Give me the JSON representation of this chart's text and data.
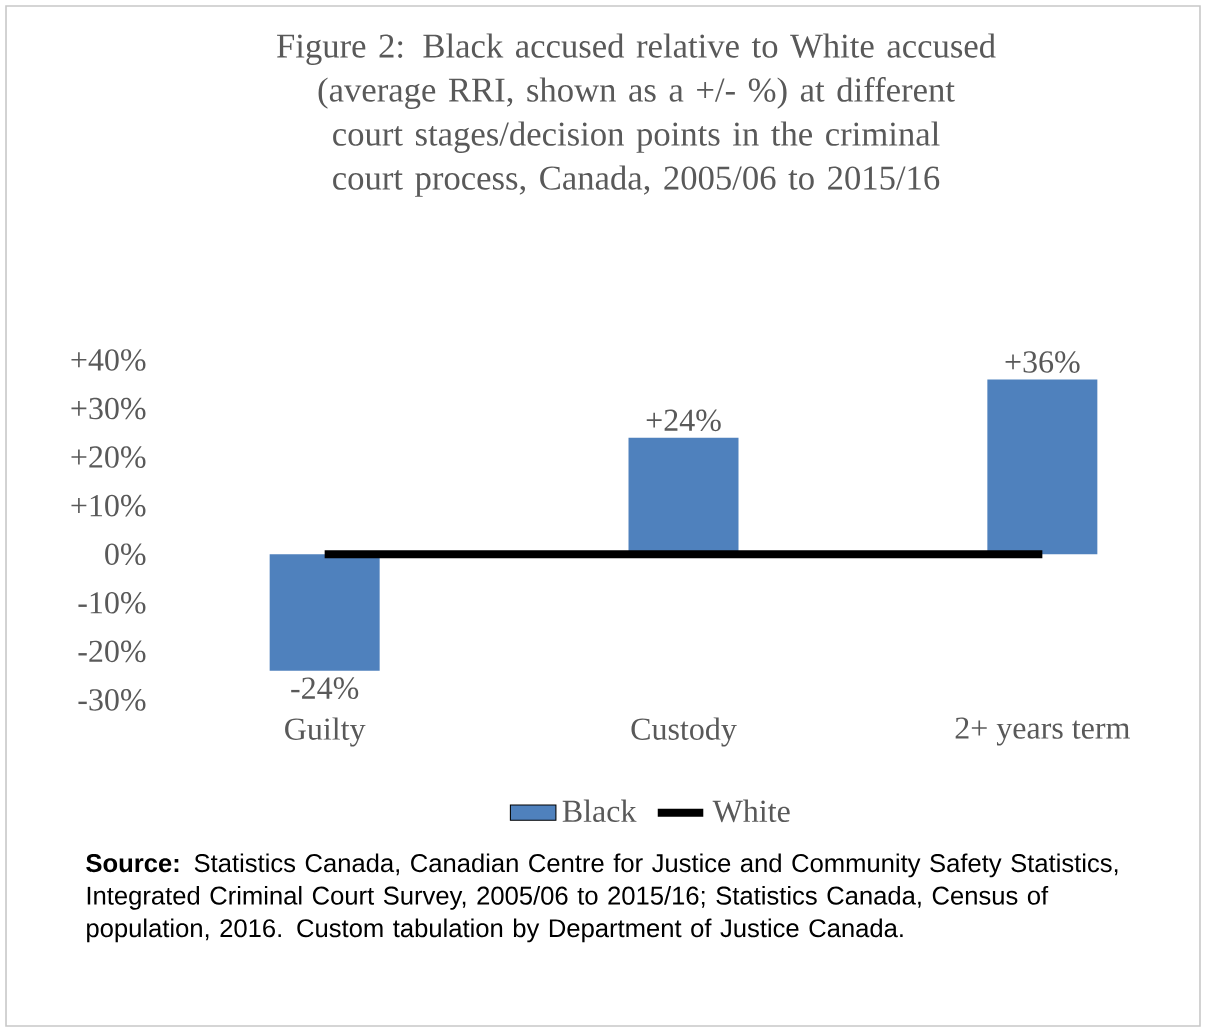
{
  "chart_data": {
    "type": "bar",
    "title": "Figure 2: Black accused relative to White accused (average RRI, shown as a +/- %) at different court stages/decision points in the criminal court process, Canada, 2005/06 to 2015/16",
    "categories": [
      "Guilty",
      "Custody",
      "2+ years term"
    ],
    "series": [
      {
        "name": "Black",
        "color": "#4f81bd",
        "values": [
          -24,
          24,
          36
        ],
        "value_labels": [
          "-24%",
          "+24%",
          "+36%"
        ]
      },
      {
        "name": "White",
        "type": "line",
        "color": "#000000",
        "values": [
          0,
          0,
          0
        ]
      }
    ],
    "ylim": [
      -30,
      40
    ],
    "yticks": [
      {
        "value": -30,
        "label": "-30%"
      },
      {
        "value": -20,
        "label": "-20%"
      },
      {
        "value": -10,
        "label": "-10%"
      },
      {
        "value": 0,
        "label": "0%"
      },
      {
        "value": 10,
        "label": "+10%"
      },
      {
        "value": 20,
        "label": "+20%"
      },
      {
        "value": 30,
        "label": "+30%"
      },
      {
        "value": 40,
        "label": "+40%"
      }
    ],
    "grid": false,
    "legend": "bottom",
    "annotations": [
      "**Source:** Statistics Canada, Canadian Centre for Justice and Community Safety Statistics, Integrated Criminal Court Survey, 2005/06 to 2015/16; Statistics Canada, Census of population, 2016. Custom tabulation by Department of Justice Canada."
    ]
  }
}
